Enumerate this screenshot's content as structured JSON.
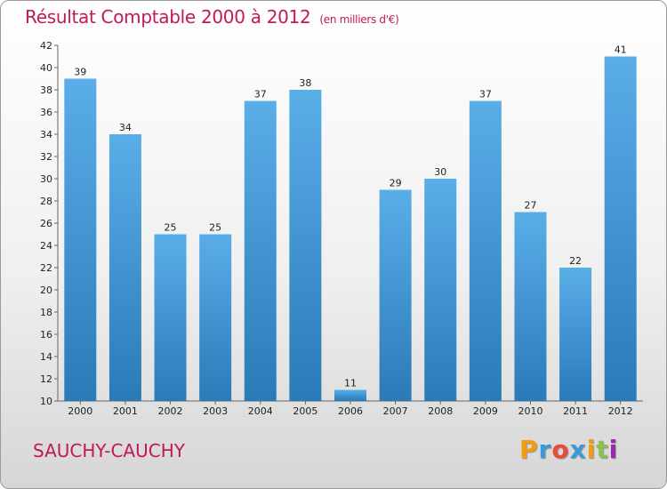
{
  "header": {
    "title": "Résultat Comptable 2000 à 2012",
    "subtitle": "(en milliers d'€)"
  },
  "footer": {
    "place": "SAUCHY-CAUCHY",
    "logo_letters": [
      "P",
      "r",
      "o",
      "x",
      "i",
      "t",
      "i"
    ],
    "logo_colors": [
      "#f39c12",
      "#3a9ad9",
      "#e74c3c",
      "#3a9ad9",
      "#f39c12",
      "#8bc34a",
      "#9c27b0"
    ]
  },
  "chart_data": {
    "type": "bar",
    "title": "Résultat Comptable 2000 à 2012",
    "subtitle": "(en milliers d'€)",
    "xlabel": "",
    "ylabel": "",
    "categories": [
      "2000",
      "2001",
      "2002",
      "2003",
      "2004",
      "2005",
      "2006",
      "2007",
      "2008",
      "2009",
      "2010",
      "2011",
      "2012"
    ],
    "values": [
      39,
      34,
      25,
      25,
      37,
      38,
      11,
      29,
      30,
      37,
      27,
      22,
      41
    ],
    "ylim": [
      10,
      42
    ],
    "yticks": [
      10,
      12,
      14,
      16,
      18,
      20,
      22,
      24,
      26,
      28,
      30,
      32,
      34,
      36,
      38,
      40,
      42
    ],
    "grid": false,
    "bar_color_top": "#5aaee8",
    "bar_color_bottom": "#2a7ab8"
  }
}
